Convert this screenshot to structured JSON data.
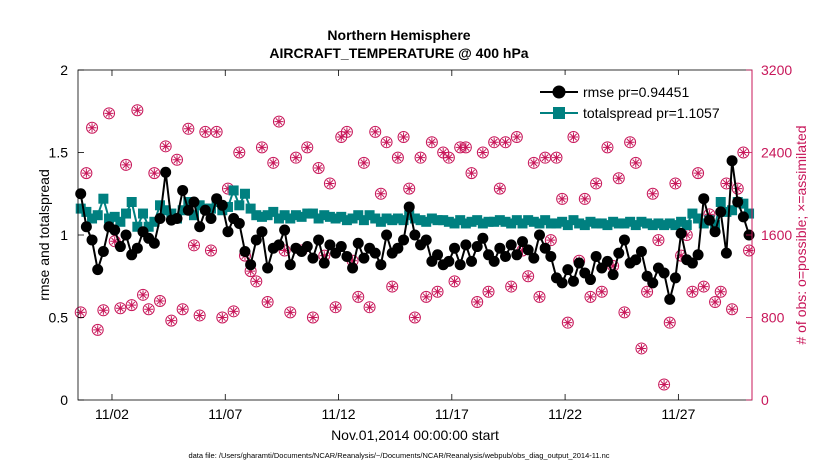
{
  "chart_data": {
    "type": "line",
    "title": "Northern Hemisphere",
    "subtitle": "AIRCRAFT_TEMPERATURE @ 400 hPa",
    "xlabel": "Nov.01,2014 00:00:00 start",
    "ylabel": "rmse and totalspread",
    "y2label": "# of obs: o=possible; ×=assimilated",
    "footnote": "data file: /Users/gharamti/Documents/NCAR/Reanalysis/~/Documents/NCAR/Reanalysis/webpub/obs_diag_output_2014-11.nc",
    "xlim": [
      0.5,
      30.25
    ],
    "ylim": [
      0,
      2
    ],
    "y2lim": [
      0,
      3200
    ],
    "xticks": [
      2,
      7,
      12,
      17,
      22,
      27
    ],
    "xtick_labels": [
      "11/02",
      "11/07",
      "11/12",
      "11/17",
      "11/22",
      "11/27"
    ],
    "yticks": [
      0,
      0.5,
      1,
      1.5,
      2
    ],
    "ytick_labels": [
      "0",
      "0.5",
      "1",
      "1.5",
      "2"
    ],
    "y2ticks": [
      0,
      800,
      1600,
      2400,
      3200
    ],
    "y2tick_labels": [
      "0",
      "800",
      "1600",
      "2400",
      "3200"
    ],
    "colors": {
      "rmse": "#000000",
      "spread": "#008080",
      "obs": "#c8175a"
    },
    "x": [
      0.62,
      0.87,
      1.12,
      1.37,
      1.62,
      1.87,
      2.12,
      2.37,
      2.62,
      2.87,
      3.12,
      3.37,
      3.62,
      3.87,
      4.12,
      4.37,
      4.62,
      4.87,
      5.12,
      5.37,
      5.62,
      5.87,
      6.12,
      6.37,
      6.62,
      6.87,
      7.12,
      7.37,
      7.62,
      7.87,
      8.12,
      8.37,
      8.62,
      8.87,
      9.12,
      9.37,
      9.62,
      9.87,
      10.12,
      10.37,
      10.62,
      10.87,
      11.12,
      11.37,
      11.62,
      11.87,
      12.12,
      12.37,
      12.62,
      12.87,
      13.12,
      13.37,
      13.62,
      13.87,
      14.12,
      14.37,
      14.62,
      14.87,
      15.12,
      15.37,
      15.62,
      15.87,
      16.12,
      16.37,
      16.62,
      16.87,
      17.12,
      17.37,
      17.62,
      17.87,
      18.12,
      18.37,
      18.62,
      18.87,
      19.12,
      19.37,
      19.62,
      19.87,
      20.12,
      20.37,
      20.62,
      20.87,
      21.12,
      21.37,
      21.62,
      21.87,
      22.12,
      22.37,
      22.62,
      22.87,
      23.12,
      23.37,
      23.62,
      23.87,
      24.12,
      24.37,
      24.62,
      24.87,
      25.12,
      25.37,
      25.62,
      25.87,
      26.12,
      26.37,
      26.62,
      26.87,
      27.12,
      27.37,
      27.62,
      27.87,
      28.12,
      28.37,
      28.62,
      28.87,
      29.12,
      29.37,
      29.62,
      29.87,
      30.12
    ],
    "series": [
      {
        "name": "rmse",
        "legend": "rmse pr=0.94451",
        "values": [
          1.25,
          1.05,
          0.97,
          0.79,
          0.9,
          1.05,
          1.03,
          0.93,
          1.0,
          0.88,
          0.92,
          1.02,
          0.98,
          0.95,
          1.1,
          1.38,
          1.09,
          1.1,
          1.27,
          1.15,
          1.2,
          1.05,
          1.15,
          1.1,
          1.22,
          1.18,
          1.02,
          1.1,
          1.07,
          0.9,
          0.82,
          0.97,
          1.02,
          0.8,
          0.92,
          0.94,
          1.03,
          0.82,
          0.92,
          0.9,
          0.93,
          0.86,
          0.97,
          0.83,
          0.94,
          0.89,
          0.93,
          0.87,
          0.8,
          0.95,
          0.86,
          0.92,
          0.89,
          0.82,
          1.0,
          0.89,
          0.92,
          0.97,
          1.17,
          1.0,
          0.94,
          0.97,
          0.84,
          0.88,
          0.82,
          0.84,
          0.92,
          0.82,
          0.94,
          0.84,
          0.93,
          0.98,
          0.88,
          0.84,
          0.92,
          0.87,
          0.94,
          0.88,
          0.96,
          0.91,
          0.86,
          1.0,
          0.92,
          0.87,
          0.74,
          0.71,
          0.79,
          0.72,
          0.83,
          0.77,
          0.73,
          0.87,
          0.8,
          0.84,
          0.76,
          0.89,
          0.97,
          0.83,
          0.85,
          0.9,
          0.75,
          0.71,
          0.8,
          0.77,
          0.61,
          0.74,
          1.01,
          0.85,
          0.83,
          0.88,
          1.22,
          1.09,
          1.02,
          1.14,
          0.89,
          1.45,
          1.2,
          1.11,
          1.0
        ]
      },
      {
        "name": "totalspread",
        "legend": "totalspread pr=1.1057",
        "values": [
          1.16,
          1.14,
          1.1,
          1.12,
          1.22,
          1.1,
          1.11,
          1.08,
          1.13,
          1.2,
          1.05,
          1.13,
          1.05,
          1.08,
          1.18,
          1.15,
          1.13,
          1.1,
          1.15,
          1.2,
          1.12,
          1.18,
          1.16,
          1.16,
          1.2,
          1.15,
          1.17,
          1.27,
          1.18,
          1.25,
          1.16,
          1.12,
          1.11,
          1.12,
          1.14,
          1.1,
          1.12,
          1.1,
          1.12,
          1.11,
          1.13,
          1.13,
          1.1,
          1.12,
          1.11,
          1.1,
          1.11,
          1.09,
          1.1,
          1.12,
          1.09,
          1.12,
          1.1,
          1.08,
          1.1,
          1.09,
          1.1,
          1.09,
          1.12,
          1.1,
          1.09,
          1.08,
          1.1,
          1.09,
          1.09,
          1.08,
          1.07,
          1.09,
          1.07,
          1.08,
          1.09,
          1.07,
          1.08,
          1.08,
          1.09,
          1.08,
          1.07,
          1.09,
          1.07,
          1.09,
          1.08,
          1.07,
          1.09,
          1.07,
          1.07,
          1.08,
          1.06,
          1.09,
          1.07,
          1.06,
          1.08,
          1.07,
          1.07,
          1.06,
          1.08,
          1.07,
          1.07,
          1.08,
          1.06,
          1.08,
          1.07,
          1.06,
          1.07,
          1.06,
          1.07,
          1.06,
          1.08,
          1.06,
          1.13,
          1.1,
          1.07,
          1.09,
          1.06,
          1.2,
          1.14,
          1.15,
          1.2,
          1.19,
          1.13
        ]
      },
      {
        "name": "obs_possible",
        "axis": "right",
        "values": [
          850,
          2200,
          2640,
          680,
          870,
          2780,
          1540,
          890,
          2280,
          920,
          2810,
          1020,
          880,
          2200,
          960,
          2460,
          770,
          2330,
          880,
          2630,
          1500,
          820,
          2600,
          1450,
          2600,
          800,
          2050,
          860,
          2400,
          1400,
          1250,
          1150,
          2450,
          950,
          2300,
          2700,
          1450,
          850,
          2350,
          1450,
          2450,
          800,
          2250,
          1400,
          2100,
          900,
          2550,
          2600,
          1350,
          1000,
          2300,
          900,
          2600,
          2000,
          2500,
          1100,
          2350,
          2550,
          2050,
          800,
          2350,
          1000,
          2500,
          1050,
          2400,
          2350,
          1150,
          2450,
          2450,
          2200,
          950,
          2400,
          1050,
          2500,
          2050,
          2500,
          1100,
          2550,
          1450,
          1200,
          2300,
          1000,
          2350,
          1550,
          2350,
          1950,
          750,
          2550,
          1350,
          1950,
          1000,
          2100,
          1050,
          2450,
          1300,
          2150,
          850,
          2500,
          2300,
          500,
          1050,
          2000,
          1550,
          150,
          750,
          2100,
          1400,
          1600,
          1050,
          2200,
          1100,
          1800,
          950,
          1050,
          2100,
          880,
          2050,
          2400,
          1450
        ]
      },
      {
        "name": "obs_assimilated",
        "axis": "right",
        "values": [
          850,
          2200,
          2640,
          680,
          870,
          2780,
          1540,
          890,
          2280,
          920,
          2810,
          1020,
          880,
          2200,
          960,
          2460,
          770,
          2330,
          880,
          2630,
          1500,
          820,
          2600,
          1450,
          2600,
          800,
          2050,
          860,
          2400,
          1400,
          1250,
          1150,
          2450,
          950,
          2300,
          2700,
          1450,
          850,
          2350,
          1450,
          2450,
          800,
          2250,
          1400,
          2100,
          900,
          2550,
          2600,
          1350,
          1000,
          2300,
          900,
          2600,
          2000,
          2500,
          1100,
          2350,
          2550,
          2050,
          800,
          2350,
          1000,
          2500,
          1050,
          2400,
          2350,
          1150,
          2450,
          2450,
          2200,
          950,
          2400,
          1050,
          2500,
          2050,
          2500,
          1100,
          2550,
          1450,
          1200,
          2300,
          1000,
          2350,
          1550,
          2350,
          1950,
          750,
          2550,
          1350,
          1950,
          1000,
          2100,
          1050,
          2450,
          1300,
          2150,
          850,
          2500,
          2300,
          500,
          1050,
          2000,
          1550,
          150,
          750,
          2100,
          1400,
          1600,
          1050,
          2200,
          1100,
          1800,
          950,
          1050,
          2100,
          880,
          2050,
          2400,
          1450
        ]
      }
    ]
  }
}
